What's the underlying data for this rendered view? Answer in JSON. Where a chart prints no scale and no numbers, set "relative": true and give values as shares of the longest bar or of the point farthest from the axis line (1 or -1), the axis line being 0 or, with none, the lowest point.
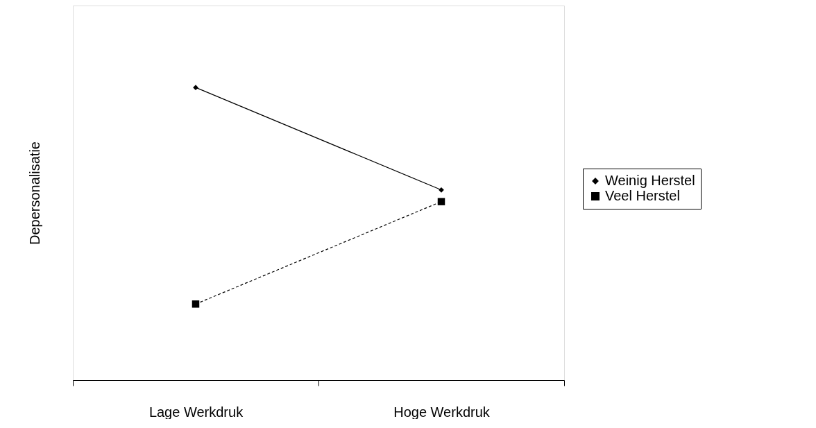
{
  "chart_data": {
    "type": "line",
    "relative": true,
    "ylabel": "Depersonalisatie",
    "categories": [
      "Lage Werkdruk",
      "Hoge Werkdruk"
    ],
    "legend": "right",
    "grid": false,
    "series": [
      {
        "name": "Weinig Herstel",
        "color": "#000000",
        "values": [
          1,
          0.65
        ],
        "marker": "diamond",
        "line_style": "solid"
      },
      {
        "name": "Veel Herstel",
        "color": "#000000",
        "values": [
          0.26,
          0.61
        ],
        "marker": "square",
        "line_style": "dashed"
      }
    ]
  }
}
